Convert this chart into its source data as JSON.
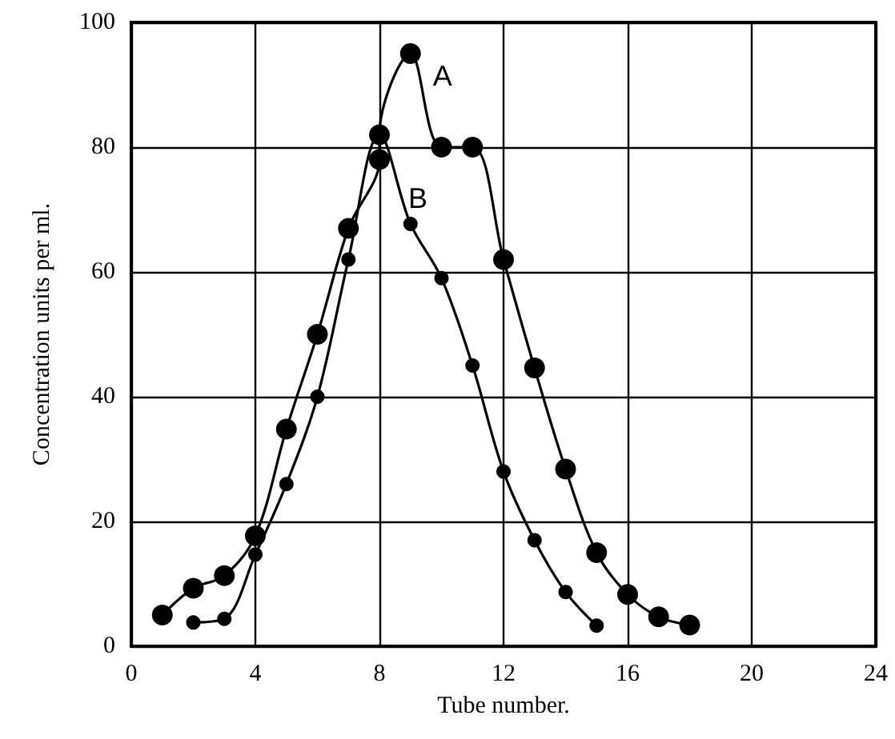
{
  "chart_data": {
    "type": "line",
    "xlabel": "Tube number.",
    "ylabel": "Concentration units per ml.",
    "series": [
      {
        "name": "A",
        "color": "#000000",
        "x": [
          1,
          2,
          3,
          4,
          5,
          6,
          7,
          8,
          8,
          9,
          10,
          11,
          12,
          13,
          14,
          15,
          16,
          17,
          18
        ],
        "values": [
          5,
          9.3,
          11.3,
          17.7,
          34.8,
          50,
          67,
          78,
          82,
          95,
          80,
          80,
          62,
          44.6,
          28.4,
          15,
          8.3,
          4.7,
          3.4
        ]
      },
      {
        "name": "B",
        "color": "#000000",
        "x": [
          2,
          3,
          4,
          5,
          6,
          7,
          8,
          9,
          10,
          11,
          12,
          13,
          14,
          15
        ],
        "values": [
          3.8,
          4.4,
          14.7,
          26,
          40,
          62,
          82,
          67.7,
          59,
          45,
          28,
          17,
          8.7,
          3.3
        ]
      }
    ],
    "xlim": [
      0,
      24
    ],
    "xticks": [
      0,
      4,
      8,
      12,
      16,
      20,
      24
    ],
    "ylim": [
      0,
      100
    ],
    "yticks": [
      0,
      20,
      40,
      60,
      80,
      100
    ],
    "grid": true,
    "marker": "circle",
    "line_style": "solid"
  }
}
